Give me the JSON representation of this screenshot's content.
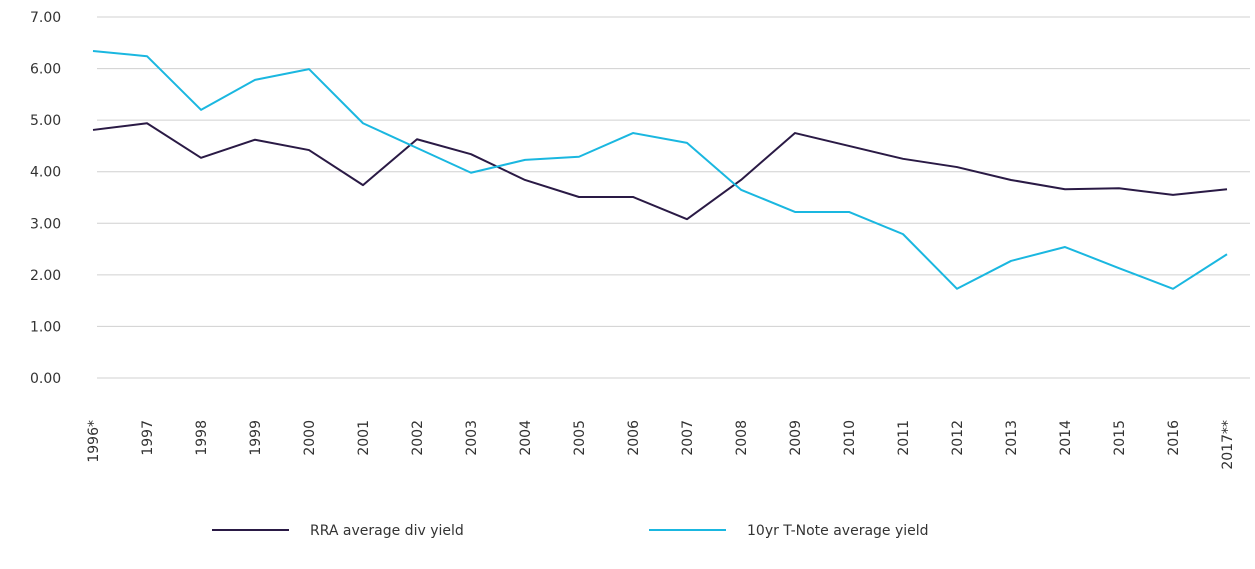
{
  "chart_data": {
    "type": "line",
    "categories": [
      "1996*",
      "1997",
      "1998",
      "1999",
      "2000",
      "2001",
      "2002",
      "2003",
      "2004",
      "2005",
      "2006",
      "2007",
      "2008",
      "2009",
      "2010",
      "2011",
      "2012",
      "2013",
      "2014",
      "2015",
      "2016",
      "2017**"
    ],
    "series": [
      {
        "name": "RRA average div yield",
        "color": "#2a1a45",
        "values": [
          4.81,
          4.94,
          4.27,
          4.62,
          4.42,
          3.74,
          4.63,
          4.34,
          3.84,
          3.51,
          3.51,
          3.08,
          3.84,
          4.75,
          4.5,
          4.25,
          4.09,
          3.84,
          3.66,
          3.68,
          3.55,
          3.66
        ]
      },
      {
        "name": "10yr T-Note average yield",
        "color": "#1ab7e0",
        "values": [
          6.34,
          6.24,
          5.2,
          5.78,
          5.99,
          4.94,
          4.46,
          3.98,
          4.23,
          4.29,
          4.75,
          4.56,
          3.65,
          3.22,
          3.22,
          2.79,
          1.73,
          2.27,
          2.54,
          2.13,
          1.73,
          2.4
        ]
      }
    ],
    "ylim": [
      0,
      7
    ],
    "yticks": [
      {
        "value": 0,
        "label": "0.00"
      },
      {
        "value": 1,
        "label": "1.00"
      },
      {
        "value": 2,
        "label": "2.00"
      },
      {
        "value": 3,
        "label": "3.00"
      },
      {
        "value": 4,
        "label": "4.00"
      },
      {
        "value": 5,
        "label": "5.00"
      },
      {
        "value": 6,
        "label": "6.00"
      },
      {
        "value": 7,
        "label": "7.00"
      }
    ],
    "grid": true,
    "legend": "bottom"
  }
}
